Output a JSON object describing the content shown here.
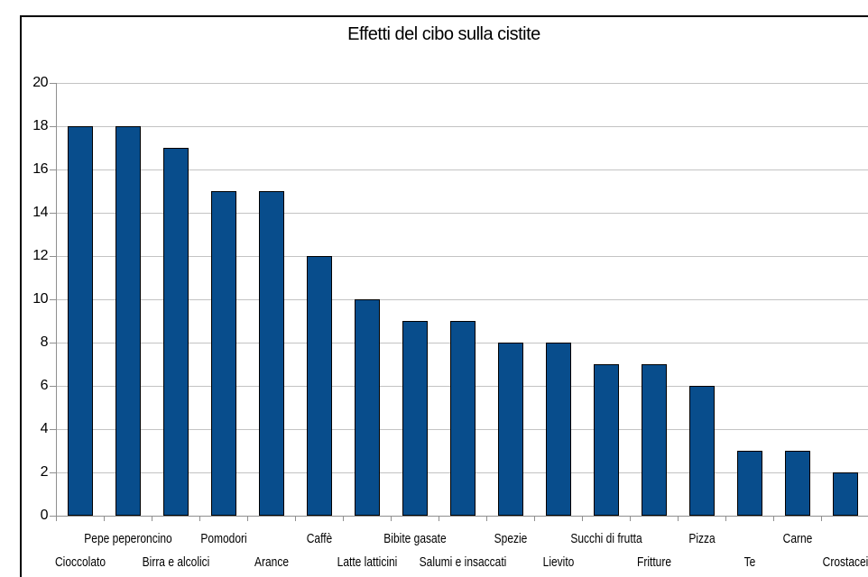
{
  "chart_title": "Effetti del cibo sulla cistite",
  "chart_data": {
    "type": "bar",
    "title": "Effetti del cibo sulla cistite",
    "categories": [
      "Cioccolato",
      "Pepe peperoncino",
      "Birra e alcolici",
      "Pomodori",
      "Arance",
      "Caffè",
      "Latte latticini",
      "Bibite gasate",
      "Salumi e insaccati",
      "Spezie",
      "Lievito",
      "Succhi di frutta",
      "Fritture",
      "Pizza",
      "Te",
      "Carne",
      "Crostacei"
    ],
    "values": [
      18,
      18,
      17,
      15,
      15,
      12,
      10,
      9,
      9,
      8,
      8,
      7,
      7,
      6,
      3,
      3,
      2
    ],
    "xlabel": "",
    "ylabel": "",
    "ylim": [
      0,
      20
    ],
    "yticks": [
      0,
      2,
      4,
      6,
      8,
      10,
      12,
      14,
      16,
      18,
      20
    ],
    "grid": "horizontal",
    "legend_position": "none",
    "category_label_layout": "staggered-two-rows",
    "colors": {
      "bar_fill": "#084d8c",
      "bar_border": "#000000",
      "gridline": "#c3c3c3",
      "axis": "#8f8f8f",
      "text": "#000000",
      "frame_border": "#000000",
      "background": "#ffffff"
    }
  }
}
